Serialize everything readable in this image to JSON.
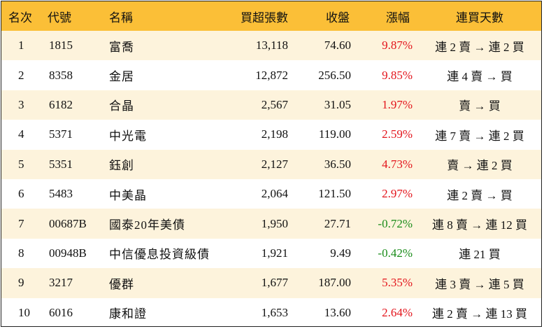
{
  "colors": {
    "header_bg": "#fbbf37",
    "row_alt_bg": "#fdf3dc",
    "up": "#e3141b",
    "down": "#1a8c1a"
  },
  "table": {
    "headers": {
      "rank": "名次",
      "code": "代號",
      "name": "名稱",
      "net_buy": "買超張數",
      "close": "收盤",
      "change": "漲幅",
      "streak": "連買天數"
    },
    "rows": [
      {
        "rank": "1",
        "code": "1815",
        "name": "富喬",
        "net_buy": "13,118",
        "close": "74.60",
        "change": "9.87%",
        "dir": "up",
        "streak": "連 2 賣 → 連 2 買"
      },
      {
        "rank": "2",
        "code": "8358",
        "name": "金居",
        "net_buy": "12,872",
        "close": "256.50",
        "change": "9.85%",
        "dir": "up",
        "streak": "連 4 賣 → 買"
      },
      {
        "rank": "3",
        "code": "6182",
        "name": "合晶",
        "net_buy": "2,567",
        "close": "31.05",
        "change": "1.97%",
        "dir": "up",
        "streak": "賣 → 買"
      },
      {
        "rank": "4",
        "code": "5371",
        "name": "中光電",
        "net_buy": "2,198",
        "close": "119.00",
        "change": "2.59%",
        "dir": "up",
        "streak": "連 7 賣 → 連 2 買"
      },
      {
        "rank": "5",
        "code": "5351",
        "name": "鈺創",
        "net_buy": "2,127",
        "close": "36.50",
        "change": "4.73%",
        "dir": "up",
        "streak": "賣 → 連 2 買"
      },
      {
        "rank": "6",
        "code": "5483",
        "name": "中美晶",
        "net_buy": "2,064",
        "close": "121.50",
        "change": "2.97%",
        "dir": "up",
        "streak": "連 2 賣 → 買"
      },
      {
        "rank": "7",
        "code": "00687B",
        "name": "國泰20年美債",
        "net_buy": "1,950",
        "close": "27.71",
        "change": "-0.72%",
        "dir": "down",
        "streak": "連 8 賣 → 連 12 買"
      },
      {
        "rank": "8",
        "code": "00948B",
        "name": "中信優息投資級債",
        "net_buy": "1,921",
        "close": "9.49",
        "change": "-0.42%",
        "dir": "down",
        "streak": "連 21 買"
      },
      {
        "rank": "9",
        "code": "3217",
        "name": "優群",
        "net_buy": "1,677",
        "close": "187.00",
        "change": "5.35%",
        "dir": "up",
        "streak": "連 3 賣 → 連 5 買"
      },
      {
        "rank": "10",
        "code": "6016",
        "name": "康和證",
        "net_buy": "1,653",
        "close": "13.60",
        "change": "2.64%",
        "dir": "up",
        "streak": "連 2 賣 → 連 13 買"
      }
    ]
  }
}
